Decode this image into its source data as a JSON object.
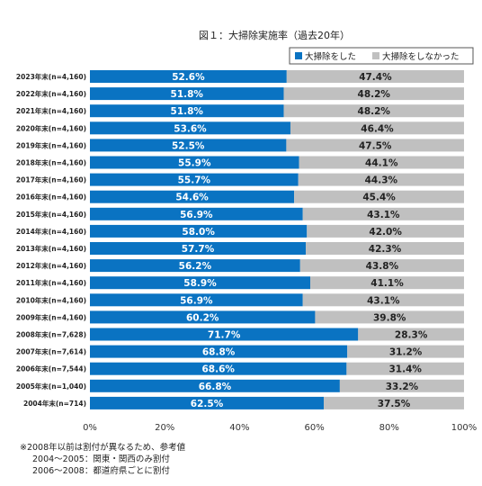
{
  "chart_data": {
    "type": "bar",
    "orientation": "horizontal",
    "stacked": true,
    "title": "図１：大掃除実施率（過去20年）",
    "categories": [
      "2023年末(n=4,160)",
      "2022年末(n=4,160)",
      "2021年末(n=4,160)",
      "2020年末(n=4,160)",
      "2019年末(n=4,160)",
      "2018年末(n=4,160)",
      "2017年末(n=4,160)",
      "2016年末(n=4,160)",
      "2015年末(n=4,160)",
      "2014年末(n=4,160)",
      "2013年末(n=4,160)",
      "2012年末(n=4,160)",
      "2011年末(n=4,160)",
      "2010年末(n=4,160)",
      "2009年末(n=4,160)",
      "2008年末(n=7,628)",
      "2007年末(n=7,614)",
      "2006年末(n=7,544)",
      "2005年末(n=1,040)",
      "2004年末(n=714)"
    ],
    "series": [
      {
        "name": "大掃除をした",
        "color": "#0a73c2",
        "values": [
          52.6,
          51.8,
          51.8,
          53.6,
          52.5,
          55.9,
          55.7,
          54.6,
          56.9,
          58.0,
          57.7,
          56.2,
          58.9,
          56.9,
          60.2,
          71.7,
          68.8,
          68.6,
          66.8,
          62.5
        ]
      },
      {
        "name": "大掃除をしなかった",
        "color": "#c0c0c0",
        "values": [
          47.4,
          48.2,
          48.2,
          46.4,
          47.5,
          44.1,
          44.3,
          45.4,
          43.1,
          42.0,
          42.3,
          43.8,
          41.1,
          43.1,
          39.8,
          28.3,
          31.2,
          31.4,
          33.2,
          37.5
        ]
      }
    ],
    "xlim": [
      0,
      100
    ],
    "xticks": [
      "0%",
      "20%",
      "40%",
      "60%",
      "80%",
      "100%"
    ],
    "grid": false,
    "legend_position": "top-right",
    "notes": [
      "※2008年以前は割付が異なるため、参考値",
      "2004～2005：関東・関西のみ割付",
      "2006～2008：都道府県ごとに割付"
    ]
  }
}
